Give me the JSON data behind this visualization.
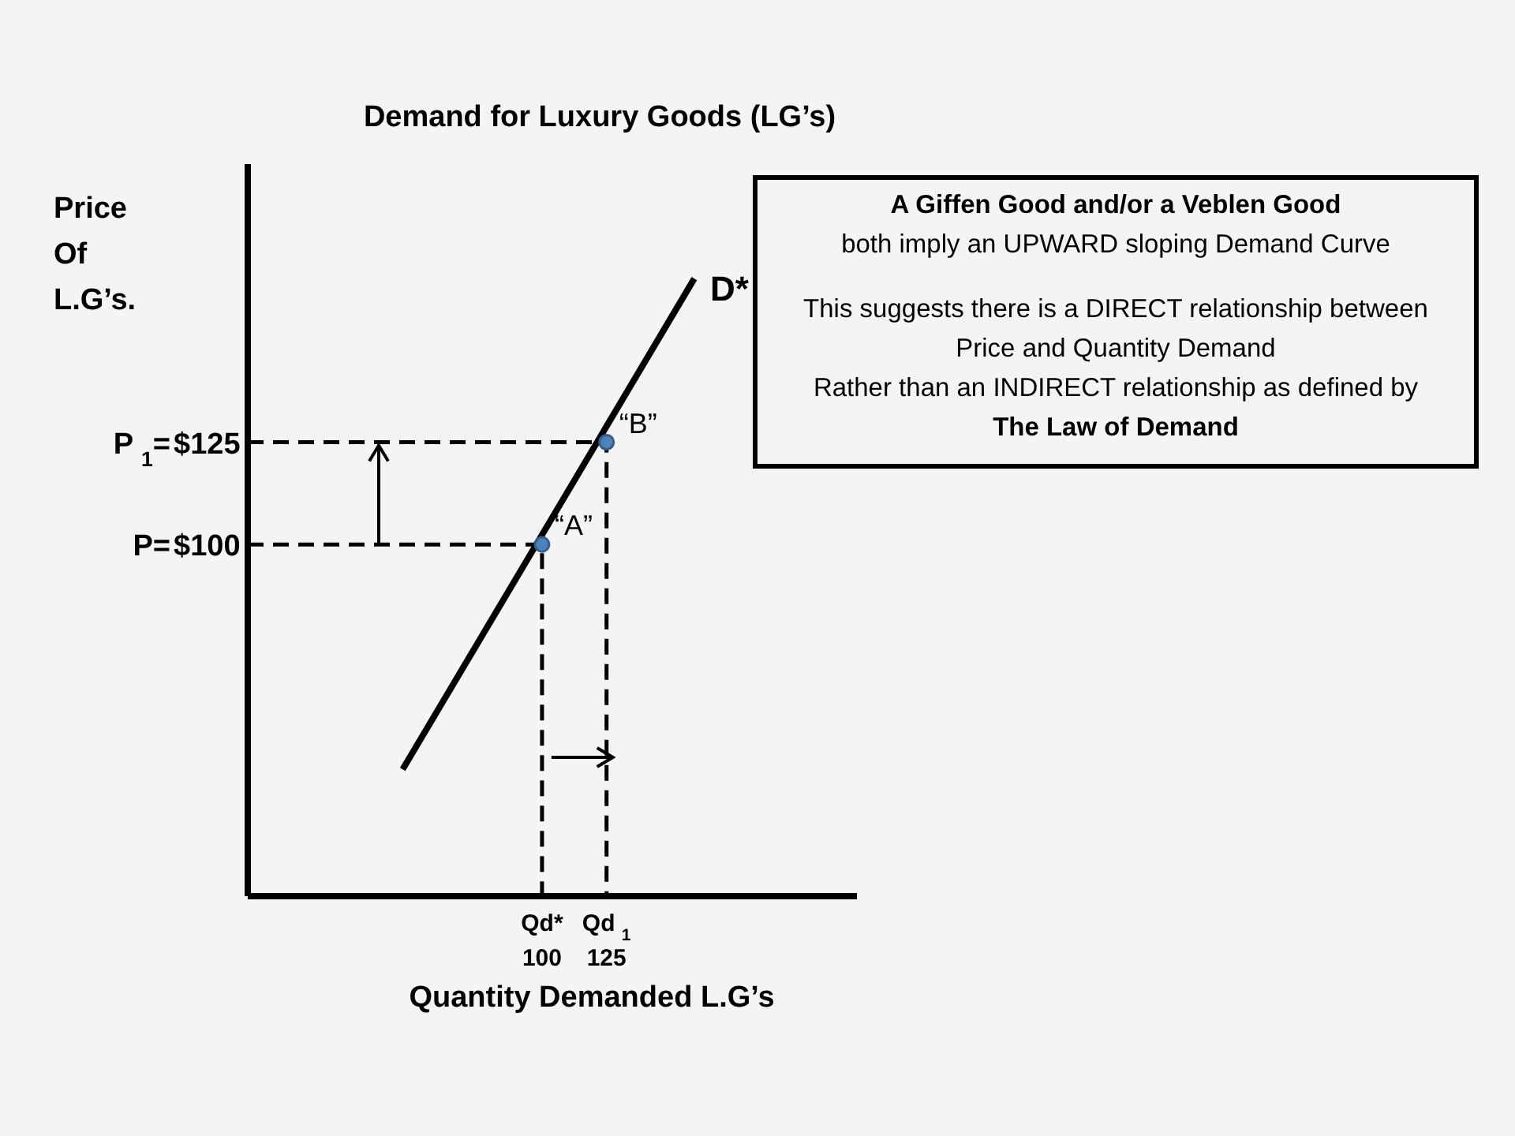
{
  "chart_data": {
    "type": "line",
    "title": "Demand for Luxury Goods (LG’s)",
    "xlabel": "Quantity Demanded L.G’s",
    "ylabel": "Price\nOf\nL.G’s.",
    "xlim": [
      -14,
      222
    ],
    "ylim": [
      14,
      193
    ],
    "xticks": [
      100,
      125
    ],
    "yticks": [
      {
        "value": 100,
        "label": "$100"
      },
      {
        "value": 125,
        "label": "$125"
      }
    ],
    "grid": false,
    "marker": "none",
    "series": [
      {
        "name": "D*",
        "color": "#000000",
        "x": [
          46,
          159
        ],
        "values": [
          45,
          165
        ],
        "line_style": "solid"
      },
      {
        "color": "#000000",
        "x": [
          -14,
          100,
          100
        ],
        "values": [
          100,
          100,
          14
        ],
        "line_style": "dashed"
      },
      {
        "color": "#000000",
        "x": [
          -14,
          125,
          125
        ],
        "values": [
          125,
          125,
          14
        ],
        "line_style": "dashed"
      },
      {
        "type": "scatter",
        "color": "#4f81bd",
        "x": [
          100,
          125
        ],
        "values": [
          100,
          125
        ],
        "marker": "circle"
      }
    ],
    "annotations": [
      {
        "text": "“A”",
        "x": 100,
        "y": 100
      },
      {
        "text": "“B”",
        "x": 125,
        "y": 125
      },
      {
        "text": "P=",
        "x": -14,
        "y": 100
      },
      {
        "text": "P $_{1}$=",
        "x": -14,
        "y": 125
      },
      {
        "text": "Qd*",
        "x": 100,
        "y": 14
      },
      {
        "text": "Qd $_{1}$",
        "x": 125,
        "y": 14
      },
      "A Giffen Good and/or a Veblen Good",
      "both imply an UPWARD sloping Demand Curve",
      "This suggests there is a DIRECT relationship between",
      "Price and Quantity Demand",
      "Rather than an INDIRECT relationship as defined by",
      "The Law of Demand"
    ]
  }
}
